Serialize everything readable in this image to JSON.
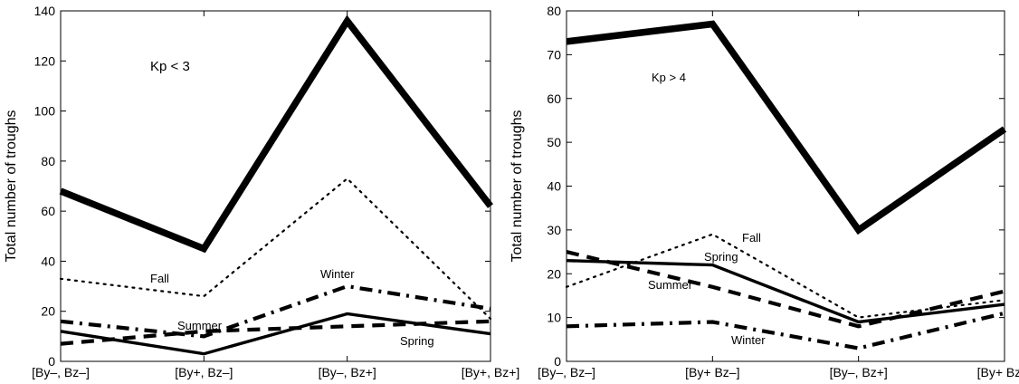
{
  "chart_data": [
    {
      "type": "line",
      "annotation": "Kp < 3",
      "ylabel": "Total number of troughs",
      "categories": [
        "[By–, Bz–]",
        "[By+, Bz–]",
        "[By–, Bz+]",
        "[By+, Bz+]"
      ],
      "ylim": [
        0,
        140
      ],
      "yticks": [
        0,
        20,
        40,
        60,
        80,
        100,
        120,
        140
      ],
      "series": [
        {
          "values": [
            68,
            45,
            136,
            62
          ],
          "style": "thick"
        },
        {
          "name": "Fall",
          "values": [
            33,
            26,
            73,
            17
          ],
          "style": "dotted"
        },
        {
          "name": "Winter",
          "values": [
            16,
            10,
            30,
            21
          ],
          "style": "dashdot"
        },
        {
          "name": "Summer",
          "values": [
            7,
            12,
            14,
            16
          ],
          "style": "dashed"
        },
        {
          "name": "Spring",
          "values": [
            12,
            3,
            19,
            11
          ],
          "style": "solid"
        }
      ]
    },
    {
      "type": "line",
      "annotation": "Kp > 4",
      "ylabel": "Total number of troughs",
      "categories": [
        "[By–, Bz–]",
        "[By+ Bz–]",
        "[By–, Bz+]",
        "[By+ Bz+]"
      ],
      "ylim": [
        0,
        80
      ],
      "yticks": [
        0,
        10,
        20,
        30,
        40,
        50,
        60,
        70,
        80
      ],
      "series": [
        {
          "values": [
            73,
            77,
            30,
            53
          ],
          "style": "thick"
        },
        {
          "name": "Fall",
          "values": [
            17,
            29,
            10,
            14
          ],
          "style": "dotted"
        },
        {
          "name": "Spring",
          "values": [
            23,
            22,
            9,
            13
          ],
          "style": "solid"
        },
        {
          "name": "Summer",
          "values": [
            25,
            17,
            8,
            16
          ],
          "style": "dashed"
        },
        {
          "name": "Winter",
          "values": [
            8,
            9,
            3,
            11
          ],
          "style": "dashdot"
        }
      ]
    }
  ]
}
